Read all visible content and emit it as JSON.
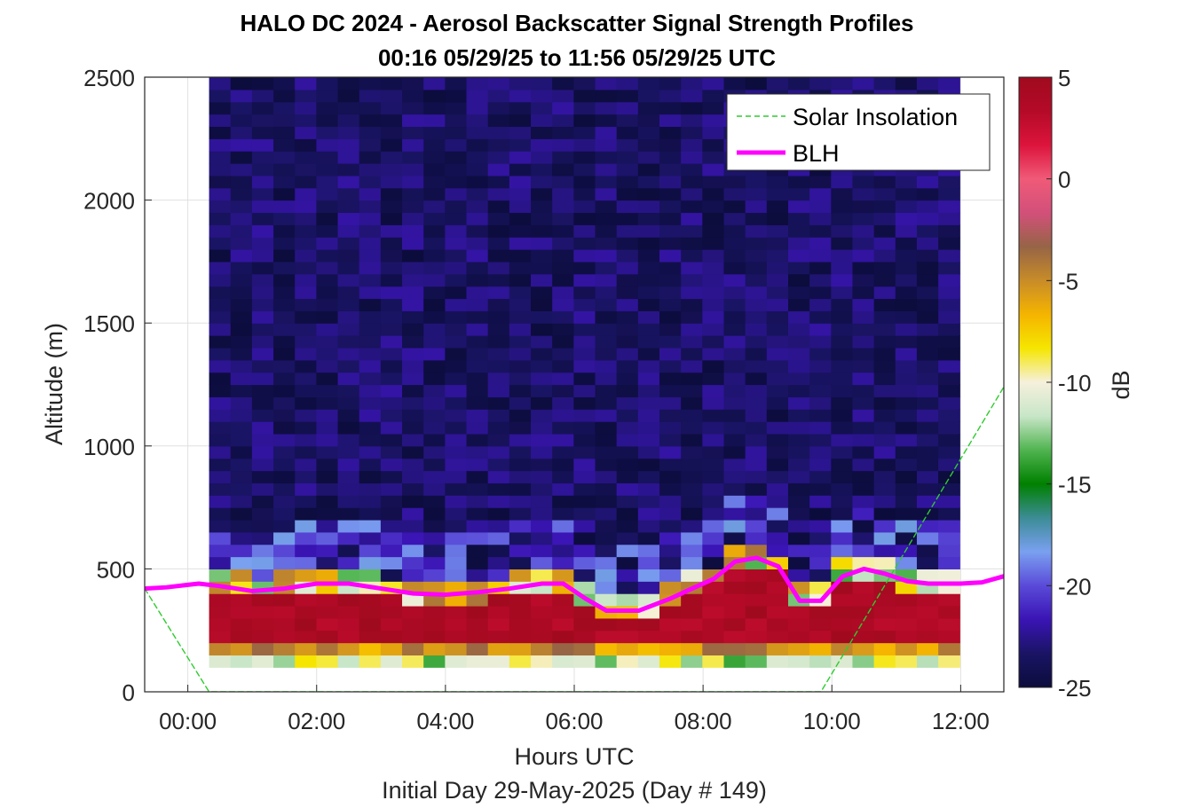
{
  "figure": {
    "title_line1": "HALO DC 2024 - Aerosol Backscatter Signal Strength Profiles",
    "title_line2": "00:16 05/29/25 to 11:56 05/29/25  UTC",
    "footer": "Initial Day 29-May-2025 (Day # 149)"
  },
  "chart_data": {
    "type": "heatmap",
    "title": "HALO DC 2024 - Aerosol Backscatter Signal Strength Profiles",
    "subtitle": "00:16 05/29/25 to 11:56 05/29/25  UTC",
    "xlabel": "Hours UTC",
    "ylabel": "Altitude (m)",
    "xlim": [
      -0.67,
      12.67
    ],
    "ylim": [
      0,
      2500
    ],
    "x_ticks": [
      0,
      2,
      4,
      6,
      8,
      10,
      12
    ],
    "x_tick_labels": [
      "00:00",
      "02:00",
      "04:00",
      "06:00",
      "08:00",
      "10:00",
      "12:00"
    ],
    "y_ticks": [
      0,
      500,
      1000,
      1500,
      2000,
      2500
    ],
    "y_tick_labels": [
      "0",
      "500",
      "1000",
      "1500",
      "2000",
      "2500"
    ],
    "grid": true,
    "colorbar": {
      "label": "dB",
      "range": [
        -25,
        5
      ],
      "ticks": [
        5,
        0,
        -5,
        -10,
        -15,
        -20,
        -25
      ],
      "tick_labels": [
        "5",
        "0",
        "-5",
        "-10",
        "-15",
        "-20",
        "-25"
      ],
      "colors": [
        "#0c0c3c",
        "#1a1464",
        "#3a14b4",
        "#5a4ad8",
        "#7aa0f0",
        "#3c8c96",
        "#008000",
        "#50b450",
        "#c8e6c8",
        "#f5f0dc",
        "#f5e600",
        "#f5b400",
        "#c88c28",
        "#966446",
        "#d2507a",
        "#f05a78",
        "#dc143c",
        "#b40a28",
        "#a00a1e"
      ]
    },
    "heatmap_grid": {
      "x_start": 0.33,
      "x_step": 0.333,
      "columns": 35,
      "altitude_start": 100,
      "altitude_step": 50,
      "rows": 48
    },
    "dominant_regions": [
      {
        "region": "near-surface layer",
        "altitude_range": [
          100,
          200
        ],
        "x_range": [
          0.33,
          12.0
        ],
        "value_db": -7
      },
      {
        "region": "boundary layer core",
        "altitude_range": [
          200,
          450
        ],
        "x_range": [
          0.33,
          12.0
        ],
        "value_db": 4
      },
      {
        "region": "free troposphere",
        "altitude_range": [
          700,
          2500
        ],
        "x_range": [
          0.33,
          12.0
        ],
        "value_db": -24
      }
    ],
    "series": [
      {
        "name": "Solar Insolation",
        "style": "dashed",
        "color": "#2ecc2e",
        "x": [
          -0.67,
          0.33,
          9.83,
          12.67
        ],
        "y": [
          420,
          0,
          0,
          1240
        ]
      },
      {
        "name": "BLH",
        "style": "solid",
        "color": "#ff00ff",
        "x": [
          -0.67,
          -0.33,
          0.0,
          0.17,
          0.5,
          1.0,
          1.5,
          2.0,
          2.5,
          3.0,
          3.5,
          4.0,
          4.5,
          5.0,
          5.5,
          5.83,
          6.17,
          6.5,
          7.0,
          7.5,
          7.83,
          8.17,
          8.5,
          8.83,
          9.17,
          9.5,
          9.83,
          10.17,
          10.5,
          10.83,
          11.17,
          11.5,
          12.0,
          12.33,
          12.67
        ],
        "y": [
          420,
          425,
          435,
          440,
          430,
          410,
          420,
          440,
          440,
          420,
          400,
          395,
          405,
          420,
          440,
          440,
          380,
          330,
          330,
          380,
          420,
          460,
          530,
          545,
          510,
          370,
          370,
          470,
          500,
          480,
          450,
          440,
          440,
          445,
          470
        ]
      }
    ],
    "legend": {
      "placement": "top-right",
      "entries": [
        "Solar Insolation",
        "BLH"
      ]
    }
  }
}
